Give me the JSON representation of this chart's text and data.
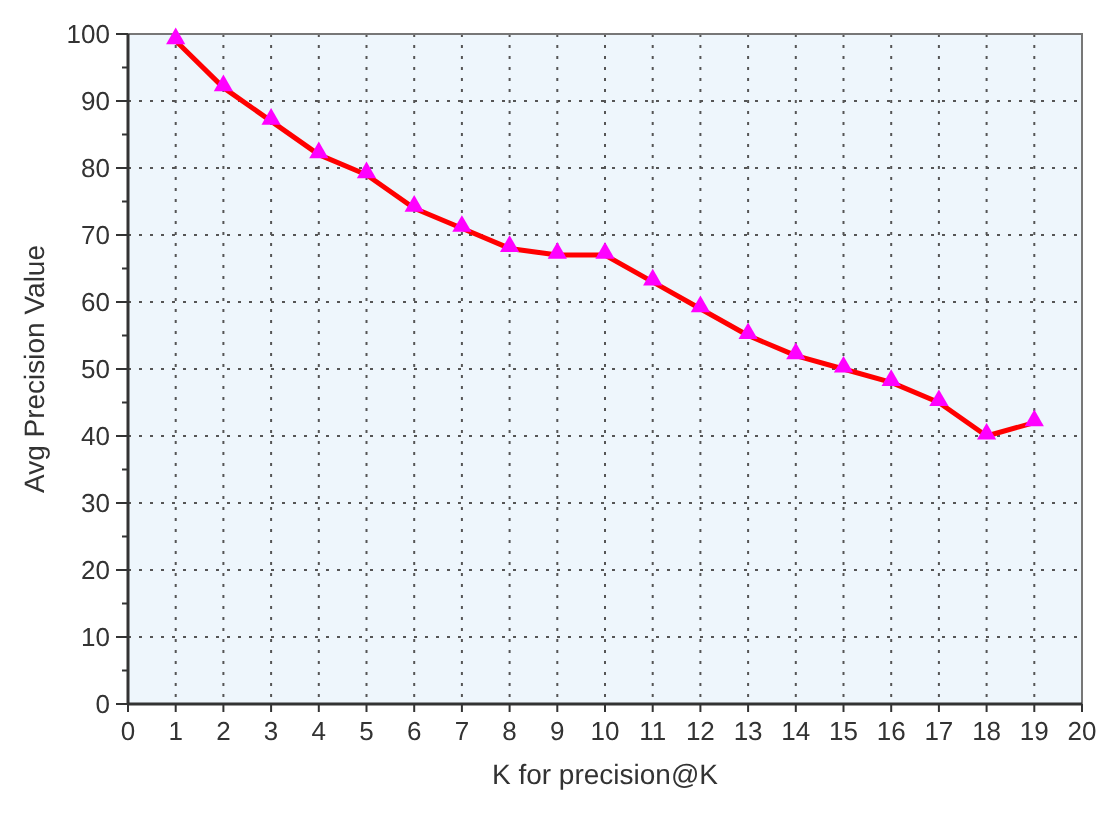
{
  "chart_data": {
    "type": "line",
    "xlabel": "K for precision@K",
    "ylabel": "Avg Precision Value",
    "x": [
      1,
      2,
      3,
      4,
      5,
      6,
      7,
      8,
      9,
      10,
      11,
      12,
      13,
      14,
      15,
      16,
      17,
      18,
      19
    ],
    "series": [
      {
        "color": "#ff0000",
        "values": [
          99,
          92,
          87,
          82,
          79,
          74,
          71,
          68,
          67,
          67,
          63,
          59,
          55,
          52,
          50,
          48,
          45,
          40,
          42
        ]
      }
    ],
    "xlim": [
      0,
      20
    ],
    "ylim": [
      0,
      100
    ],
    "xticks": [
      0,
      1,
      2,
      3,
      4,
      5,
      6,
      7,
      8,
      9,
      10,
      11,
      12,
      13,
      14,
      15,
      16,
      17,
      18,
      19,
      20
    ],
    "yticks": [
      0,
      10,
      20,
      30,
      40,
      50,
      60,
      70,
      80,
      90,
      100
    ],
    "grid": true,
    "marker": "triangle",
    "line_style": "solid"
  }
}
